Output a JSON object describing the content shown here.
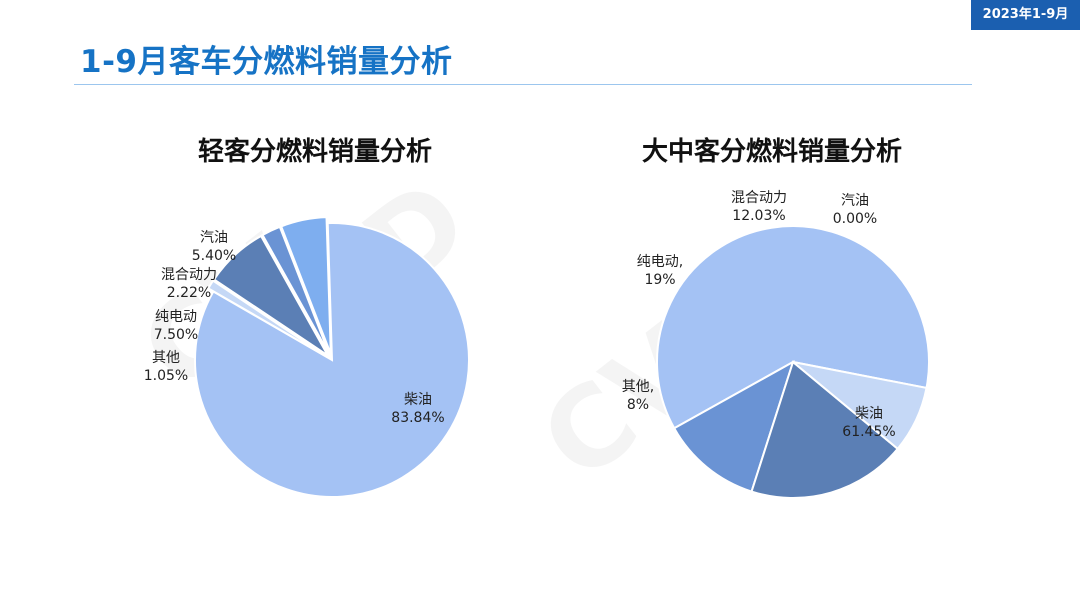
{
  "badge": "2023年1-9月",
  "page_title": "1-9月客车分燃料销量分析",
  "colors": {
    "柴油": "#a4c2f4",
    "汽油": "#7eaeef",
    "混合动力": "#6a93d4",
    "纯电动": "#5b7fb5",
    "其他": "#c5d8f6"
  },
  "chart_data": [
    {
      "type": "pie",
      "title": "轻客分燃料销量分析",
      "slices": [
        {
          "name": "柴油",
          "value": 83.84,
          "label_value": "83.84%"
        },
        {
          "name": "汽油",
          "value": 5.4,
          "label_value": "5.40%"
        },
        {
          "name": "混合动力",
          "value": 2.22,
          "label_value": "2.22%"
        },
        {
          "name": "纯电动",
          "value": 7.5,
          "label_value": "7.50%"
        },
        {
          "name": "其他",
          "value": 1.05,
          "label_value": "1.05%"
        }
      ]
    },
    {
      "type": "pie",
      "title": "大中客分燃料销量分析",
      "slices": [
        {
          "name": "柴油",
          "value": 61.45,
          "label_value": "61.45%"
        },
        {
          "name": "汽油",
          "value": 0.0,
          "label_value": "0.00%"
        },
        {
          "name": "混合动力",
          "value": 12.03,
          "label_value": "12.03%"
        },
        {
          "name": "纯电动",
          "value": 19,
          "label_value": "19%",
          "label_name": "纯电动,"
        },
        {
          "name": "其他",
          "value": 8,
          "label_value": "8%",
          "label_name": "其他,"
        }
      ]
    }
  ]
}
